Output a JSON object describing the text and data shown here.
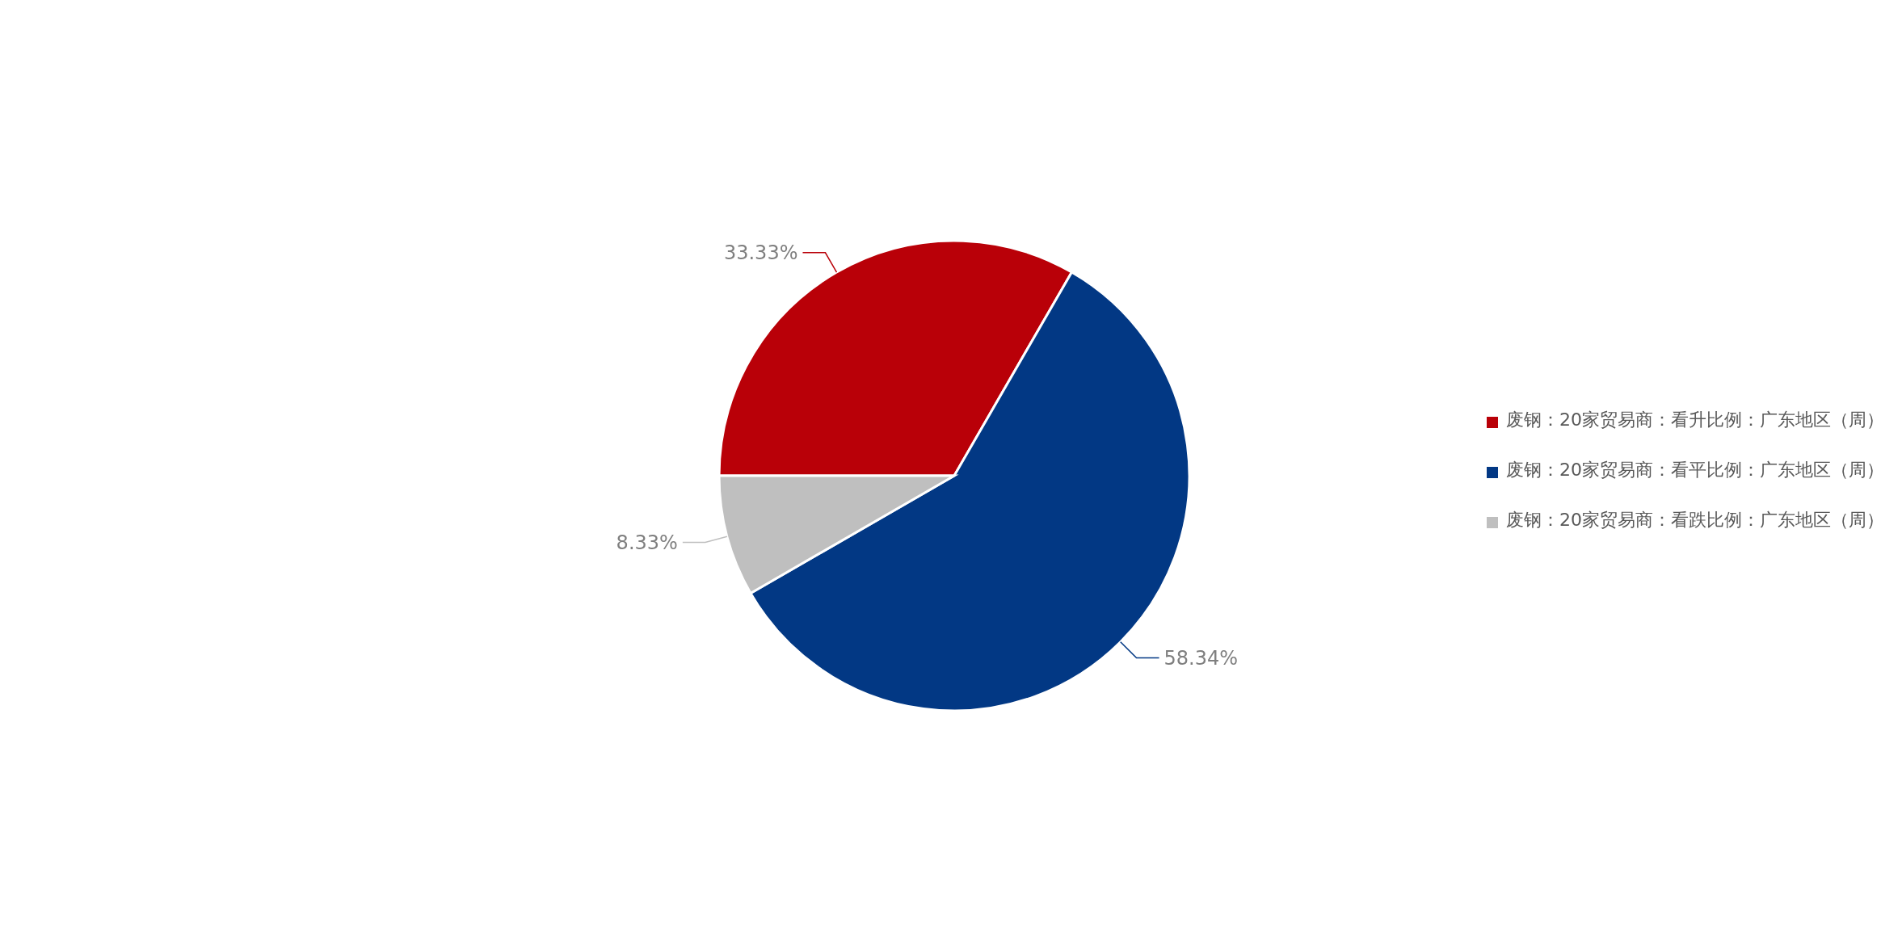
{
  "chart_data": {
    "type": "pie",
    "categories": [
      "废钢：20家贸易商：看升比例：广东地区（周）",
      "废钢：20家贸易商：看平比例：广东地区（周）",
      "废钢：20家贸易商：看跌比例：广东地区（周）"
    ],
    "values": [
      33.33,
      58.34,
      8.33
    ],
    "colors": [
      "#b90008",
      "#023884",
      "#bfbfbf"
    ],
    "value_labels": [
      "33.33%",
      "58.34%",
      "8.33%"
    ],
    "legend": "right"
  }
}
